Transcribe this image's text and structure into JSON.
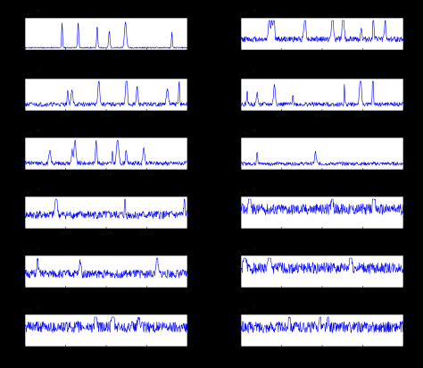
{
  "figure": {
    "background": "#000000",
    "panel_background": "#ffffff",
    "line_color": "#0000ff"
  },
  "chart_data": [
    {
      "type": "line",
      "exponent_label": "x 10",
      "exponent_power": "-4",
      "xlim": [
        0,
        20000
      ],
      "xticks": [
        0,
        5000,
        10000,
        15000,
        20000
      ],
      "xtick_labels": [],
      "yticks": [],
      "ytick_labels": [],
      "profile": "sparse",
      "seed": 11
    },
    {
      "type": "line",
      "exponent_label": "x 10",
      "exponent_power": "-4",
      "xlim": [
        0,
        20000
      ],
      "xticks": [
        0,
        5000,
        10000,
        15000,
        20000
      ],
      "xtick_labels": [],
      "yticks": [],
      "ytick_labels": [],
      "profile": "dense-peaks",
      "seed": 12
    },
    {
      "type": "line",
      "exponent_label": "x 10",
      "exponent_power": "-4",
      "xlim": [
        0,
        20000
      ],
      "xticks": [
        0,
        5000,
        10000,
        15000,
        20000
      ],
      "xtick_labels": [
        "5000",
        "10000",
        "15000"
      ],
      "yticks": [],
      "ytick_labels": [],
      "profile": "peaks",
      "seed": 21
    },
    {
      "type": "line",
      "exponent_label": "x 10",
      "exponent_power": "-4",
      "xlim": [
        0,
        20000
      ],
      "xticks": [
        0,
        5000,
        10000,
        15000,
        20000
      ],
      "xtick_labels": [
        "5000",
        "10000",
        "15000"
      ],
      "yticks": [],
      "ytick_labels": [],
      "profile": "peaks",
      "seed": 22
    },
    {
      "type": "line",
      "exponent_label": "x 10",
      "exponent_power": "-4",
      "xlim": [
        0,
        20000
      ],
      "xticks": [
        0,
        5000,
        10000,
        15000,
        20000
      ],
      "xtick_labels": [
        "5000",
        "10000",
        "15000"
      ],
      "yticks": [],
      "ytick_labels": [],
      "profile": "peaks",
      "seed": 31
    },
    {
      "type": "line",
      "exponent_label": "x 10",
      "exponent_power": "-4",
      "xlim": [
        0,
        20000
      ],
      "xticks": [
        0,
        5000,
        10000,
        15000,
        20000
      ],
      "xtick_labels": [],
      "yticks": [],
      "ytick_labels": [],
      "profile": "low-noise",
      "seed": 32
    },
    {
      "type": "line",
      "exponent_label": "x 10",
      "exponent_power": "-3",
      "xlim": [
        0,
        20000
      ],
      "xticks": [
        0,
        5000,
        10000,
        15000,
        20000
      ],
      "xtick_labels": [
        "5000",
        "10000",
        "15000"
      ],
      "yticks": [],
      "ytick_labels": [],
      "profile": "noise",
      "seed": 41
    },
    {
      "type": "line",
      "exponent_label": "x 10",
      "exponent_power": "-3",
      "xlim": [
        0,
        20000
      ],
      "xticks": [
        0,
        5000,
        10000,
        15000,
        20000
      ],
      "xtick_labels": [],
      "yticks": [],
      "ytick_labels": [],
      "profile": "dense-noise",
      "seed": 42
    },
    {
      "type": "line",
      "exponent_label": "x 10",
      "exponent_power": "-3",
      "xlim": [
        0,
        20000
      ],
      "xticks": [
        0,
        5000,
        10000,
        15000,
        20000
      ],
      "xtick_labels": [],
      "yticks": [],
      "ytick_labels": [],
      "profile": "noise",
      "seed": 51
    },
    {
      "type": "line",
      "exponent_label": "x 10",
      "exponent_power": "-3",
      "xlim": [
        0,
        20000
      ],
      "xticks": [
        0,
        5000,
        10000,
        15000,
        20000
      ],
      "xtick_labels": [],
      "yticks": [],
      "ytick_labels": [],
      "profile": "dense-noise",
      "seed": 52
    },
    {
      "type": "line",
      "exponent_label": "x 10",
      "exponent_power": "-3",
      "xlim": [
        0,
        20000
      ],
      "xticks": [
        0,
        5000,
        10000,
        15000,
        20000
      ],
      "xtick_labels": [],
      "yticks": [],
      "ytick_labels": [],
      "profile": "dense-noise",
      "seed": 61
    },
    {
      "type": "line",
      "exponent_label": "x 10",
      "exponent_power": "-3",
      "xlim": [
        0,
        20000
      ],
      "xticks": [
        0,
        5000,
        10000,
        15000,
        20000
      ],
      "xtick_labels": [],
      "yticks": [],
      "ytick_labels": [],
      "profile": "dense-noise",
      "seed": 62
    }
  ]
}
